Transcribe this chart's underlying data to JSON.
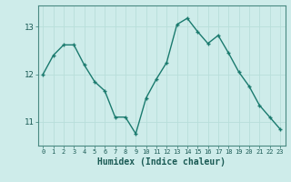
{
  "x": [
    0,
    1,
    2,
    3,
    4,
    5,
    6,
    7,
    8,
    9,
    10,
    11,
    12,
    13,
    14,
    15,
    16,
    17,
    18,
    19,
    20,
    21,
    22,
    23
  ],
  "y": [
    12.0,
    12.4,
    12.62,
    12.62,
    12.2,
    11.85,
    11.65,
    11.1,
    11.1,
    10.75,
    11.5,
    11.9,
    12.25,
    13.05,
    13.18,
    12.9,
    12.65,
    12.82,
    12.45,
    12.05,
    11.75,
    11.35,
    11.1,
    10.85
  ],
  "xlabel": "Humidex (Indice chaleur)",
  "xlim": [
    -0.5,
    23.5
  ],
  "ylim": [
    10.5,
    13.45
  ],
  "yticks": [
    11,
    12,
    13
  ],
  "xtick_labels": [
    "0",
    "1",
    "2",
    "3",
    "4",
    "5",
    "6",
    "7",
    "8",
    "9",
    "10",
    "11",
    "12",
    "13",
    "14",
    "15",
    "16",
    "17",
    "18",
    "19",
    "20",
    "21",
    "22",
    "23"
  ],
  "line_color": "#1a7a6e",
  "marker_color": "#1a7a6e",
  "bg_color": "#ceecea",
  "grid_color": "#b8deda",
  "axis_color": "#4a8a82",
  "label_color": "#1a5a54",
  "tick_color": "#1a5a54"
}
